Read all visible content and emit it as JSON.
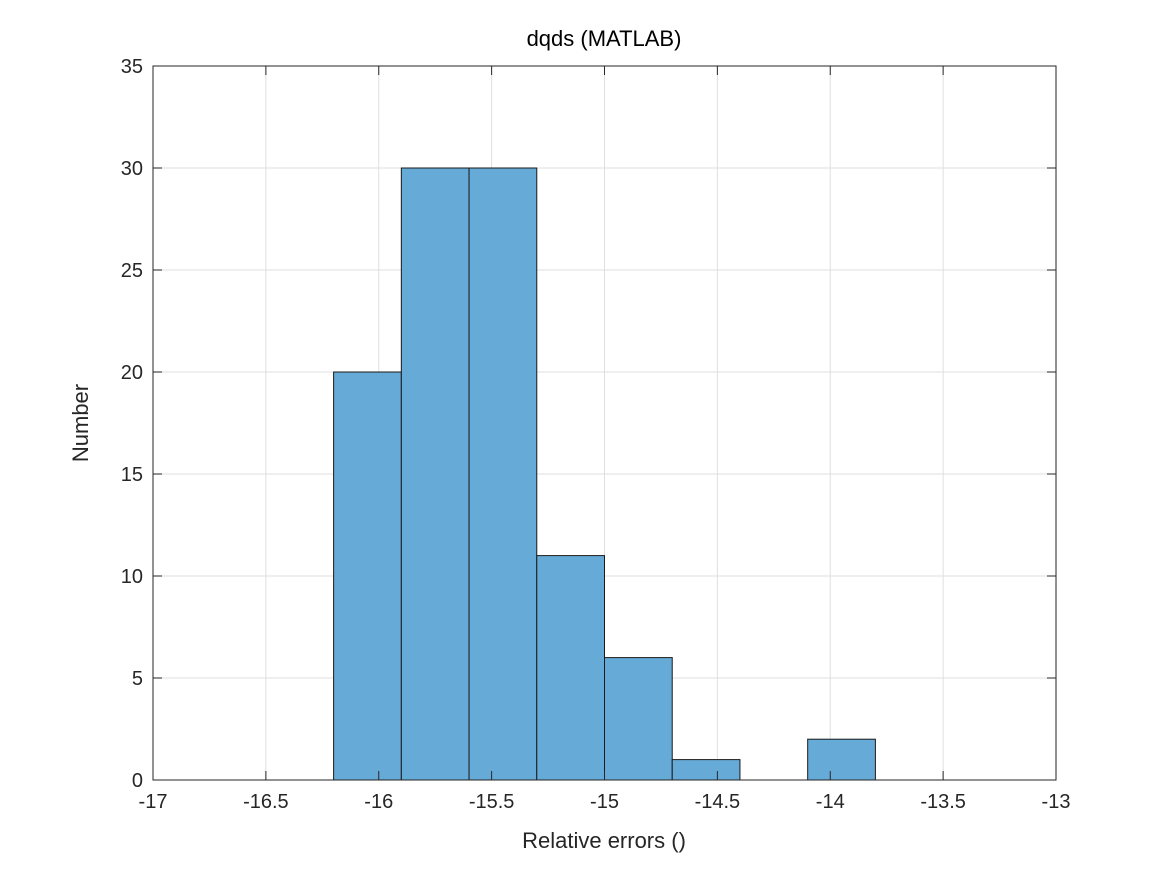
{
  "chart_data": {
    "type": "bar",
    "title": "dqds (MATLAB)",
    "xlabel": "Relative errors ()",
    "ylabel": "Number",
    "xlim": [
      -17,
      -13
    ],
    "ylim": [
      0,
      35
    ],
    "grid": true,
    "bin_edges": [
      -16.2,
      -15.9,
      -15.6,
      -15.3,
      -15.0,
      -14.7,
      -14.4,
      -14.1,
      -13.8
    ],
    "values": [
      20,
      30,
      30,
      11,
      6,
      1,
      0,
      2
    ],
    "xticks": [
      -17,
      -16.5,
      -16,
      -15.5,
      -15,
      -14.5,
      -14,
      -13.5,
      -13
    ],
    "xtick_labels": [
      "-17",
      "-16.5",
      "-16",
      "-15.5",
      "-15",
      "-14.5",
      "-14",
      "-13.5",
      "-13"
    ],
    "yticks": [
      0,
      5,
      10,
      15,
      20,
      25,
      30,
      35
    ],
    "ytick_labels": [
      "0",
      "5",
      "10",
      "15",
      "20",
      "25",
      "30",
      "35"
    ],
    "bar_color": "#66aad8",
    "edge_color": "#1a1a1a"
  }
}
